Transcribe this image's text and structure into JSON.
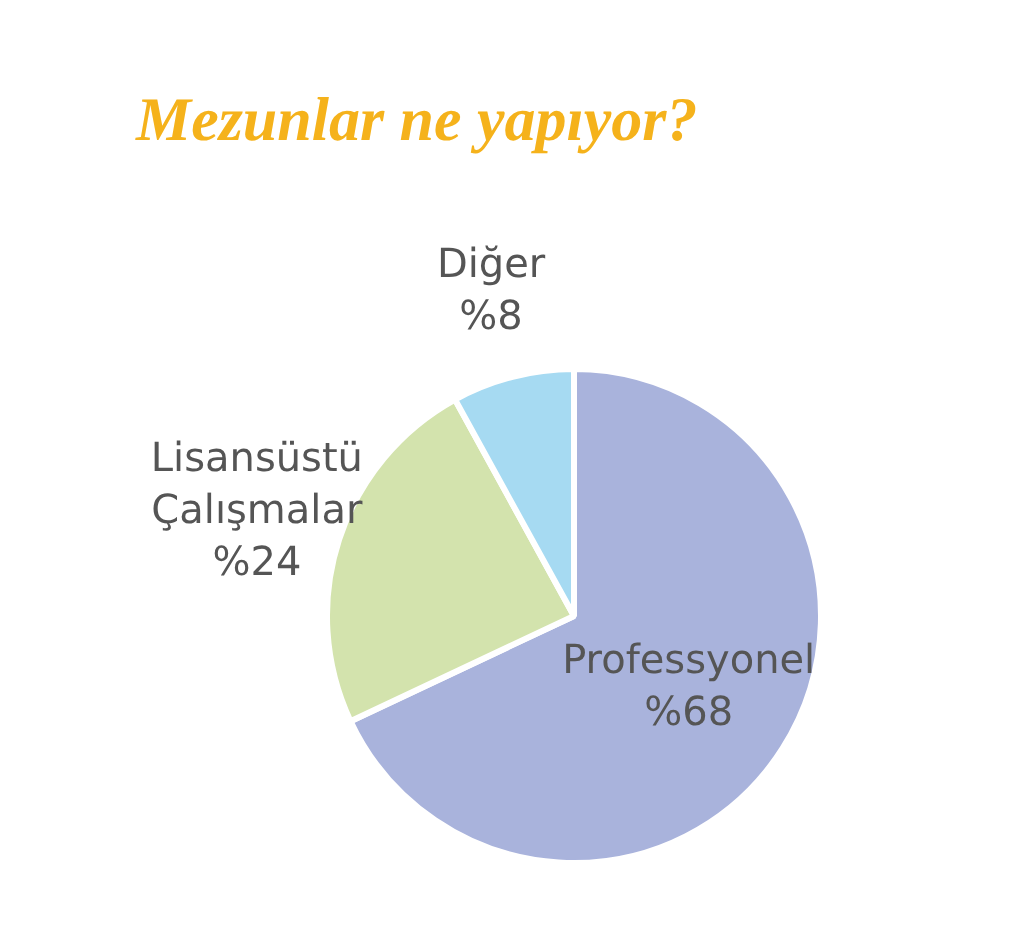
{
  "chart_data": {
    "type": "pie",
    "title": "Mezunlar ne yapıyor?",
    "categories": [
      "Professyonel",
      "Lisansüstü Çalışmalar",
      "Diğer"
    ],
    "values": [
      68,
      24,
      8
    ],
    "colors": [
      "#a9b3dc",
      "#d3e3ad",
      "#a6daf2"
    ],
    "value_labels": [
      "%68",
      "%24",
      "%8"
    ],
    "legend": false
  }
}
